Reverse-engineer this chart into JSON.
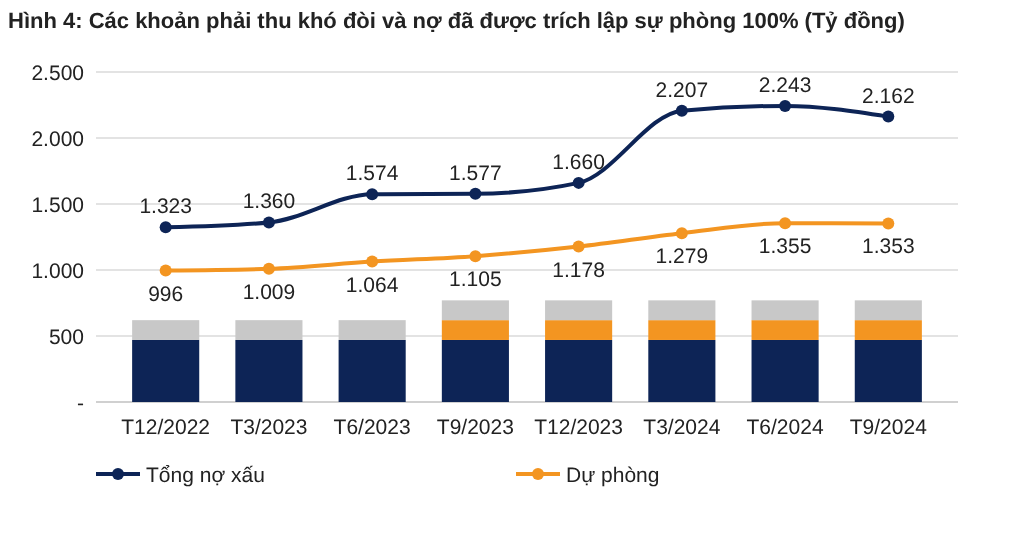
{
  "chart_data": {
    "type": "bar",
    "stacked": true,
    "title": "Hình 4: Các khoản phải thu khó đòi và nợ đã được trích lập sự phòng 100% (Tỷ đồng)",
    "categories": [
      "T12/2022",
      "T3/2023",
      "T6/2023",
      "T9/2023",
      "T12/2023",
      "T3/2024",
      "T6/2024",
      "T9/2024"
    ],
    "series": [
      {
        "color": "#0d2456",
        "values": [
          470,
          470,
          470,
          470,
          470,
          470,
          470,
          470
        ]
      },
      {
        "color": "#f39521",
        "values": [
          0,
          0,
          0,
          150,
          150,
          150,
          150,
          150
        ]
      },
      {
        "color": "#c8c8c8",
        "values": [
          150,
          150,
          150,
          150,
          150,
          150,
          150,
          150
        ]
      },
      {
        "name": "Tổng nợ xấu",
        "type": "line",
        "color": "#0d2456",
        "values": [
          1323,
          1360,
          1574,
          1577,
          1660,
          2207,
          2243,
          2162
        ],
        "value_labels": [
          "1.323",
          "1.360",
          "1.574",
          "1.577",
          "1.660",
          "2.207",
          "2.243",
          "2.162"
        ]
      },
      {
        "name": "Dự phòng",
        "type": "line",
        "color": "#f39521",
        "values": [
          996,
          1009,
          1064,
          1105,
          1178,
          1279,
          1355,
          1353
        ],
        "value_labels": [
          "996",
          "1.009",
          "1.064",
          "1.105",
          "1.178",
          "1.279",
          "1.355",
          "1.353"
        ]
      }
    ],
    "ylim": [
      0,
      2500
    ],
    "yticks": [
      {
        "value": 0,
        "label": "-"
      },
      {
        "value": 500,
        "label": "500"
      },
      {
        "value": 1000,
        "label": "1.000"
      },
      {
        "value": 1500,
        "label": "1.500"
      },
      {
        "value": 2000,
        "label": "2.000"
      },
      {
        "value": 2500,
        "label": "2.500"
      }
    ],
    "grid": "y",
    "legend": "bottom",
    "marker": "circle"
  }
}
